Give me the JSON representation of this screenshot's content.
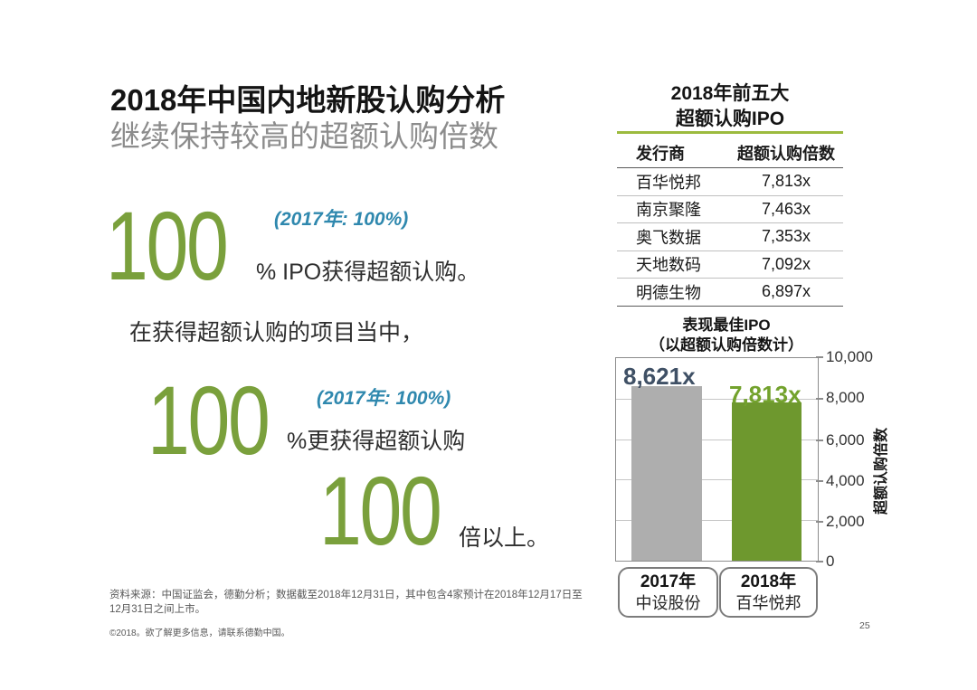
{
  "slide": {
    "title": "2018年中国内地新股认购分析",
    "subtitle": "继续保持较高的超额认购倍数",
    "page_number": "25",
    "source_line1": "资料来源：中国证监会，德勤分析；数据截至2018年12月31日，其中包含4家预计在2018年12月17日至",
    "source_line2": "12月31日之间上市。",
    "copyright": "©2018。欲了解更多信息，请联系德勤中国。"
  },
  "stats": {
    "s1_value": "100",
    "s1_note": "(2017年: 100%)",
    "s1_text": "% IPO获得超额认购。",
    "lead": "在获得超额认购的项目当中，",
    "s2_value": "100",
    "s2_note": "(2017年: 100%)",
    "s2_text": "%更获得超额认购",
    "s3_value": "100",
    "s3_text": "倍以上。"
  },
  "top5": {
    "title1": "2018年前五大",
    "title2": "超额认购IPO",
    "col_issuer": "发行商",
    "col_multiple": "超额认购倍数",
    "rows": [
      {
        "issuer": "百华悦邦",
        "multiple": "7,813x"
      },
      {
        "issuer": "南京聚隆",
        "multiple": "7,463x"
      },
      {
        "issuer": "奥飞数据",
        "multiple": "7,353x"
      },
      {
        "issuer": "天地数码",
        "multiple": "7,092x"
      },
      {
        "issuer": "明德生物",
        "multiple": "6,897x"
      }
    ]
  },
  "chart": {
    "title1": "表现最佳IPO",
    "title2": "（以超额认购倍数计）",
    "ylabel": "超额认购倍数",
    "yticks": [
      "10,000",
      "8,000",
      "6,000",
      "4,000",
      "2,000",
      "0"
    ],
    "bars": [
      {
        "label": "8,621x",
        "year": "2017年",
        "name": "中设股份"
      },
      {
        "label": "7,813x",
        "year": "2018年",
        "name": "百华悦邦"
      }
    ]
  },
  "colors": {
    "accent_green": "#6e982e",
    "light_green_rule": "#9cbb3e",
    "stat_green": "#7aa03c",
    "note_blue": "#2f88ae",
    "label_navy": "#3f5065",
    "bar_gray": "#aeaeae"
  },
  "chart_data": [
    {
      "type": "table",
      "title": "2018年前五大 超额认购IPO",
      "columns": [
        "发行商",
        "超额认购倍数"
      ],
      "rows": [
        [
          "百华悦邦",
          "7,813x"
        ],
        [
          "南京聚隆",
          "7,463x"
        ],
        [
          "奥飞数据",
          "7,353x"
        ],
        [
          "天地数码",
          "7,092x"
        ],
        [
          "明德生物",
          "6,897x"
        ]
      ]
    },
    {
      "type": "bar",
      "title": "表现最佳IPO（以超额认购倍数计）",
      "categories": [
        "2017年 中设股份",
        "2018年 百华悦邦"
      ],
      "values": [
        8621,
        7813
      ],
      "data_labels": [
        "8,621x",
        "7,813x"
      ],
      "bar_colors": [
        "#aeaeae",
        "#6e982e"
      ],
      "xlabel": "",
      "ylabel": "超额认购倍数",
      "ylim": [
        0,
        10000
      ],
      "yticks": [
        0,
        2000,
        4000,
        6000,
        8000,
        10000
      ],
      "grid": true,
      "legend": false
    }
  ]
}
